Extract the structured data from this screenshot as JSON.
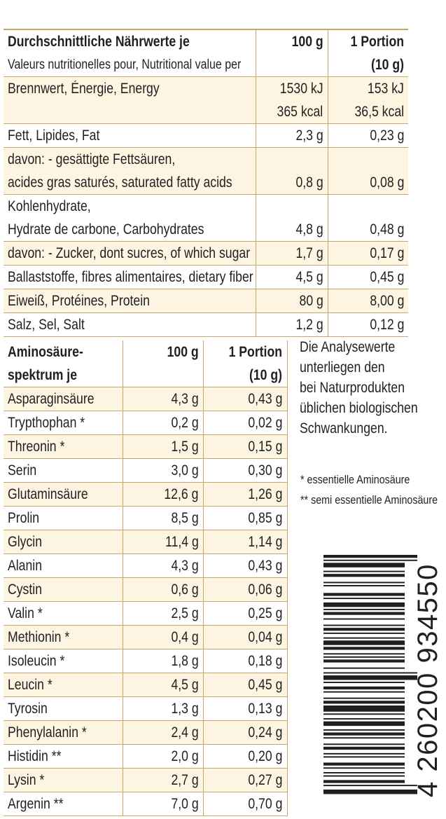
{
  "nutrition": {
    "header": {
      "title": "Durchschnittliche Nährwerte je",
      "subtitle": "Valeurs nutritionelles pour, Nutritional value per",
      "col_100g": "100 g",
      "col_portion": "1 Portion",
      "col_portion_size": "(10 g)"
    },
    "rows": [
      {
        "label": "Brennwert, Énergie, Energy",
        "v100": "1530 kJ",
        "vpor": "153 kJ"
      },
      {
        "label": "",
        "v100": "365 kcal",
        "vpor": "36,5 kcal"
      },
      {
        "label": "Fett, Lipides, Fat",
        "v100": "2,3 g",
        "vpor": "0,23 g"
      },
      {
        "label": "davon: - gesättigte Fettsäuren,",
        "v100": "",
        "vpor": ""
      },
      {
        "label": "acides gras saturés, saturated fatty acids",
        "v100": "0,8 g",
        "vpor": "0,08 g"
      },
      {
        "label": "Kohlenhydrate,",
        "v100": "",
        "vpor": ""
      },
      {
        "label": "Hydrate de carbone, Carbohydrates",
        "v100": "4,8 g",
        "vpor": "0,48 g"
      },
      {
        "label": "davon: - Zucker, dont sucres, of which sugar",
        "v100": "1,7 g",
        "vpor": "0,17 g"
      },
      {
        "label": "Ballaststoffe, fibres alimentaires, dietary fiber",
        "v100": "4,5 g",
        "vpor": "0,45 g"
      },
      {
        "label": "Eiweiß, Protéines, Protein",
        "v100": "80 g",
        "vpor": "8,00 g"
      },
      {
        "label": "Salz, Sel, Salt",
        "v100": "1,2 g",
        "vpor": "0,12 g"
      }
    ]
  },
  "amino": {
    "header": {
      "title_line1": "Aminosäure-",
      "title_line2": "spektrum je",
      "col_100g": "100 g",
      "col_portion": "1 Portion",
      "col_portion_size": "(10 g)"
    },
    "rows": [
      {
        "label": "Asparaginsäure",
        "v100": "4,3 g",
        "vpor": "0,43 g"
      },
      {
        "label": "Trypthophan *",
        "v100": "0,2 g",
        "vpor": "0,02 g"
      },
      {
        "label": "Threonin *",
        "v100": "1,5 g",
        "vpor": "0,15 g"
      },
      {
        "label": "Serin",
        "v100": "3,0 g",
        "vpor": "0,30 g"
      },
      {
        "label": "Glutaminsäure",
        "v100": "12,6 g",
        "vpor": "1,26 g"
      },
      {
        "label": "Prolin",
        "v100": "8,5 g",
        "vpor": "0,85 g"
      },
      {
        "label": "Glycin",
        "v100": "11,4 g",
        "vpor": "1,14 g"
      },
      {
        "label": "Alanin",
        "v100": "4,3 g",
        "vpor": "0,43 g"
      },
      {
        "label": "Cystin",
        "v100": "0,6 g",
        "vpor": "0,06 g"
      },
      {
        "label": "Valin *",
        "v100": "2,5 g",
        "vpor": "0,25 g"
      },
      {
        "label": "Methionin *",
        "v100": "0,4 g",
        "vpor": "0,04 g"
      },
      {
        "label": "Isoleucin *",
        "v100": "1,8 g",
        "vpor": "0,18 g"
      },
      {
        "label": "Leucin *",
        "v100": "4,5 g",
        "vpor": "0,45 g"
      },
      {
        "label": "Tyrosin",
        "v100": "1,3 g",
        "vpor": "0,13 g"
      },
      {
        "label": "Phenylalanin *",
        "v100": "2,4 g",
        "vpor": "0,24 g"
      },
      {
        "label": "Histidin **",
        "v100": "2,0 g",
        "vpor": "0,20 g"
      },
      {
        "label": "Lysin *",
        "v100": "2,7 g",
        "vpor": "0,27 g"
      },
      {
        "label": "Argenin **",
        "v100": "7,0 g",
        "vpor": "0,70 g"
      }
    ]
  },
  "note": {
    "lines": [
      "Die Analysewerte",
      "unterliegen den",
      "bei Naturprodukten",
      "üblichen biologischen",
      "Schwankungen."
    ]
  },
  "footnotes": {
    "essential": "*  essentielle Aminosäure",
    "semi_essential": "** semi essentielle Aminosäure"
  },
  "barcode": {
    "digits": "4 260200 934550"
  },
  "colors": {
    "border": "#c9a567",
    "shade": "#fdf5e1",
    "text": "#231f20"
  }
}
